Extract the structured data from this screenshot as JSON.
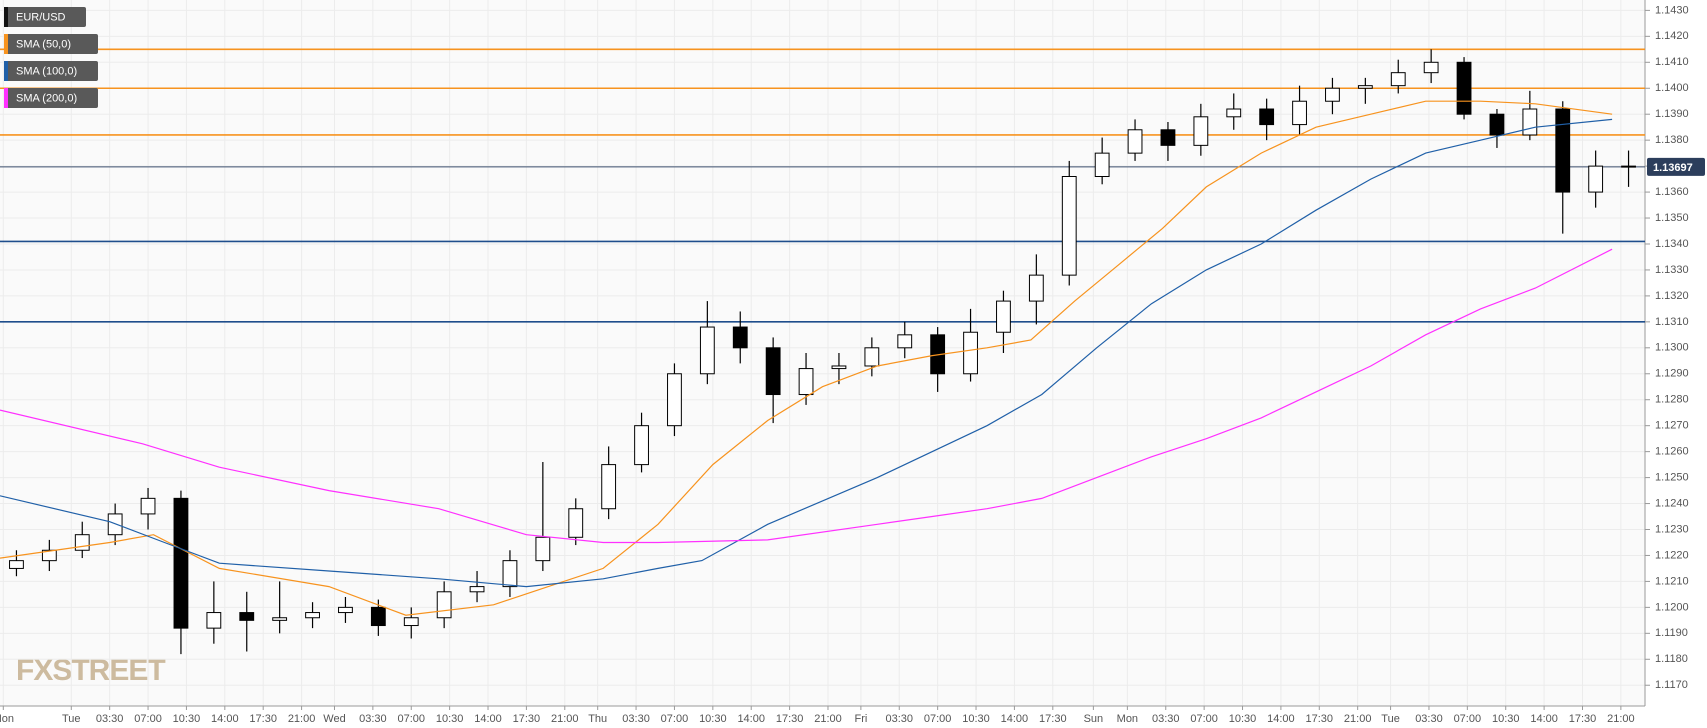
{
  "chart_data": {
    "type": "candlestick",
    "x": [
      1.5,
      4.5,
      7.5,
      10.5,
      13.5,
      16.5,
      19.5,
      22.5,
      25.5,
      28.5,
      31.5,
      34.5,
      37.5,
      40.5,
      43.5,
      46.5,
      49.5,
      52.5,
      55.5,
      58.5,
      61.5,
      64.5,
      67.5,
      70.5,
      73.5,
      76.5,
      79.5,
      82.5,
      85.5,
      88.5,
      91.5,
      94.5,
      97.5,
      100.5,
      103.5,
      106.5,
      109.5,
      112.5,
      115.5,
      118.5,
      121.5,
      124.5,
      127.5,
      130.5,
      133.5,
      136.5,
      139.5,
      142.5,
      145.5,
      148.5
    ],
    "series": [
      {
        "name": "EUR/USD",
        "color": "#000000",
        "open": [
          1.1215,
          1.1218,
          1.1222,
          1.1228,
          1.1236,
          1.1242,
          1.1192,
          1.1198,
          1.1195,
          1.1196,
          1.1198,
          1.12,
          1.1193,
          1.1196,
          1.1206,
          1.1208,
          1.1218,
          1.1227,
          1.1238,
          1.1255,
          1.127,
          1.129,
          1.1308,
          1.13,
          1.1282,
          1.1292,
          1.1293,
          1.13,
          1.1305,
          1.129,
          1.1306,
          1.1318,
          1.1328,
          1.1366,
          1.1375,
          1.1384,
          1.1378,
          1.1389,
          1.1392,
          1.1386,
          1.1395,
          1.14,
          1.1401,
          1.1406,
          1.141,
          1.139,
          1.1382,
          1.1392,
          1.136,
          1.137
        ],
        "high": [
          1.1222,
          1.1226,
          1.1233,
          1.124,
          1.1246,
          1.1245,
          1.121,
          1.1206,
          1.121,
          1.1202,
          1.1204,
          1.1203,
          1.12,
          1.121,
          1.1214,
          1.1222,
          1.1256,
          1.1242,
          1.1262,
          1.1275,
          1.1294,
          1.1318,
          1.1314,
          1.1304,
          1.1298,
          1.1298,
          1.1304,
          1.131,
          1.1308,
          1.1315,
          1.1322,
          1.1336,
          1.1372,
          1.1381,
          1.1388,
          1.1387,
          1.1394,
          1.1398,
          1.1396,
          1.1401,
          1.1404,
          1.1404,
          1.1411,
          1.1415,
          1.1412,
          1.1392,
          1.1399,
          1.1395,
          1.1376,
          1.1376
        ],
        "low": [
          1.1212,
          1.1214,
          1.1219,
          1.1224,
          1.123,
          1.1182,
          1.1186,
          1.1183,
          1.119,
          1.1192,
          1.1194,
          1.1189,
          1.1188,
          1.1192,
          1.1202,
          1.1204,
          1.1214,
          1.1224,
          1.1234,
          1.1252,
          1.1266,
          1.1286,
          1.1294,
          1.1271,
          1.1278,
          1.1286,
          1.1289,
          1.1296,
          1.1283,
          1.1287,
          1.1298,
          1.1309,
          1.1324,
          1.1363,
          1.1372,
          1.1372,
          1.1374,
          1.1384,
          1.138,
          1.1382,
          1.139,
          1.1394,
          1.1398,
          1.1402,
          1.1388,
          1.1377,
          1.138,
          1.1344,
          1.1354,
          1.1362
        ],
        "close": [
          1.1218,
          1.1222,
          1.1228,
          1.1236,
          1.1242,
          1.1192,
          1.1198,
          1.1195,
          1.1196,
          1.1198,
          1.12,
          1.1193,
          1.1196,
          1.1206,
          1.1208,
          1.1218,
          1.1227,
          1.1238,
          1.1255,
          1.127,
          1.129,
          1.1308,
          1.13,
          1.1282,
          1.1292,
          1.1293,
          1.13,
          1.1305,
          1.129,
          1.1306,
          1.1318,
          1.1328,
          1.1366,
          1.1375,
          1.1384,
          1.1378,
          1.1389,
          1.1392,
          1.1386,
          1.1395,
          1.14,
          1.1401,
          1.1406,
          1.141,
          1.139,
          1.1382,
          1.1392,
          1.136,
          1.137,
          1.13697
        ]
      },
      {
        "name": "SMA (50,0)",
        "color": "#f7931e",
        "x": [
          0,
          10,
          14,
          20,
          30,
          37,
          45,
          50,
          55,
          60,
          65,
          70,
          75,
          80,
          85,
          90,
          94,
          98,
          102,
          106,
          110,
          115,
          120,
          125,
          130,
          135,
          140,
          147
        ],
        "values": [
          1.1219,
          1.1225,
          1.1228,
          1.1215,
          1.1208,
          1.1197,
          1.1201,
          1.1208,
          1.1215,
          1.1232,
          1.1255,
          1.1272,
          1.1285,
          1.1293,
          1.1297,
          1.13,
          1.1303,
          1.1318,
          1.1332,
          1.1346,
          1.1362,
          1.1375,
          1.1385,
          1.139,
          1.1395,
          1.1395,
          1.1394,
          1.139
        ]
      },
      {
        "name": "SMA (100,0)",
        "color": "#2060a8",
        "x": [
          0,
          10,
          15,
          20,
          30,
          40,
          48,
          55,
          60,
          64,
          70,
          80,
          90,
          95,
          100,
          105,
          110,
          115,
          120,
          125,
          130,
          135,
          140,
          147
        ],
        "values": [
          1.1243,
          1.1233,
          1.1225,
          1.1217,
          1.1214,
          1.1211,
          1.1208,
          1.1211,
          1.1215,
          1.1218,
          1.1232,
          1.125,
          1.127,
          1.1282,
          1.13,
          1.1317,
          1.133,
          1.134,
          1.1353,
          1.1365,
          1.1375,
          1.138,
          1.1385,
          1.1388
        ]
      },
      {
        "name": "SMA (200,0)",
        "color": "#ff30ff",
        "x": [
          0,
          13,
          20,
          30,
          40,
          48,
          55,
          60,
          70,
          80,
          85,
          90,
          95,
          100,
          105,
          110,
          115,
          120,
          125,
          130,
          135,
          140,
          147
        ],
        "values": [
          1.1276,
          1.1263,
          1.1254,
          1.1245,
          1.1238,
          1.1228,
          1.1225,
          1.1225,
          1.1226,
          1.1232,
          1.1235,
          1.1238,
          1.1242,
          1.125,
          1.1258,
          1.1265,
          1.1273,
          1.1283,
          1.1293,
          1.1305,
          1.1315,
          1.1323,
          1.1338
        ]
      }
    ],
    "levels": [
      {
        "value": 1.1415,
        "color": "#f7931e"
      },
      {
        "value": 1.14,
        "color": "#f7931e"
      },
      {
        "value": 1.1382,
        "color": "#f7931e"
      },
      {
        "value": 1.1341,
        "color": "#1f4e8c"
      },
      {
        "value": 1.131,
        "color": "#1f4e8c"
      }
    ],
    "last_price": 1.13697,
    "watermark": "FXSTREET",
    "xlim": [
      0,
      150
    ],
    "ylim": [
      1.1162,
      1.1434
    ],
    "grid": true,
    "xticks": [
      {
        "value": 0.3,
        "label": "Mon"
      },
      {
        "value": 6.5,
        "label": "Tue"
      },
      {
        "value": 10,
        "label": "03:30"
      },
      {
        "value": 13.5,
        "label": "07:00"
      },
      {
        "value": 17,
        "label": "10:30"
      },
      {
        "value": 20.5,
        "label": "14:00"
      },
      {
        "value": 24,
        "label": "17:30"
      },
      {
        "value": 27.5,
        "label": "21:00"
      },
      {
        "value": 30.5,
        "label": "Wed"
      },
      {
        "value": 34,
        "label": "03:30"
      },
      {
        "value": 37.5,
        "label": "07:00"
      },
      {
        "value": 41,
        "label": "10:30"
      },
      {
        "value": 44.5,
        "label": "14:00"
      },
      {
        "value": 48,
        "label": "17:30"
      },
      {
        "value": 51.5,
        "label": "21:00"
      },
      {
        "value": 54.5,
        "label": "Thu"
      },
      {
        "value": 58,
        "label": "03:30"
      },
      {
        "value": 61.5,
        "label": "07:00"
      },
      {
        "value": 65,
        "label": "10:30"
      },
      {
        "value": 68.5,
        "label": "14:00"
      },
      {
        "value": 72,
        "label": "17:30"
      },
      {
        "value": 75.5,
        "label": "21:00"
      },
      {
        "value": 78.5,
        "label": "Fri"
      },
      {
        "value": 82,
        "label": "03:30"
      },
      {
        "value": 85.5,
        "label": "07:00"
      },
      {
        "value": 89,
        "label": "10:30"
      },
      {
        "value": 92.5,
        "label": "14:00"
      },
      {
        "value": 96,
        "label": "17:30"
      },
      {
        "value": 99.7,
        "label": "Sun"
      },
      {
        "value": 102.8,
        "label": "Mon"
      },
      {
        "value": 106.3,
        "label": "03:30"
      },
      {
        "value": 109.8,
        "label": "07:00"
      },
      {
        "value": 113.3,
        "label": "10:30"
      },
      {
        "value": 116.8,
        "label": "14:00"
      },
      {
        "value": 120.3,
        "label": "17:30"
      },
      {
        "value": 123.8,
        "label": "21:00"
      },
      {
        "value": 126.8,
        "label": "Tue"
      },
      {
        "value": 130.3,
        "label": "03:30"
      },
      {
        "value": 133.8,
        "label": "07:00"
      },
      {
        "value": 137.3,
        "label": "10:30"
      },
      {
        "value": 140.8,
        "label": "14:00"
      },
      {
        "value": 144.3,
        "label": "17:30"
      },
      {
        "value": 147.8,
        "label": "21:00"
      }
    ],
    "yticks": [
      {
        "value": 1.117,
        "label": "1.1170"
      },
      {
        "value": 1.118,
        "label": "1.1180"
      },
      {
        "value": 1.119,
        "label": "1.1190"
      },
      {
        "value": 1.12,
        "label": "1.1200"
      },
      {
        "value": 1.121,
        "label": "1.1210"
      },
      {
        "value": 1.122,
        "label": "1.1220"
      },
      {
        "value": 1.123,
        "label": "1.1230"
      },
      {
        "value": 1.124,
        "label": "1.1240"
      },
      {
        "value": 1.125,
        "label": "1.1250"
      },
      {
        "value": 1.126,
        "label": "1.1260"
      },
      {
        "value": 1.127,
        "label": "1.1270"
      },
      {
        "value": 1.128,
        "label": "1.1280"
      },
      {
        "value": 1.129,
        "label": "1.1290"
      },
      {
        "value": 1.13,
        "label": "1.1300"
      },
      {
        "value": 1.131,
        "label": "1.1310"
      },
      {
        "value": 1.132,
        "label": "1.1320"
      },
      {
        "value": 1.133,
        "label": "1.1330"
      },
      {
        "value": 1.134,
        "label": "1.1340"
      },
      {
        "value": 1.135,
        "label": "1.1350"
      },
      {
        "value": 1.136,
        "label": "1.1360"
      },
      {
        "value": 1.137,
        "label": "1.1370"
      },
      {
        "value": 1.138,
        "label": "1.1380"
      },
      {
        "value": 1.139,
        "label": "1.1390"
      },
      {
        "value": 1.14,
        "label": "1.1400"
      },
      {
        "value": 1.141,
        "label": "1.1410"
      },
      {
        "value": 1.142,
        "label": "1.1420"
      },
      {
        "value": 1.143,
        "label": "1.1430"
      }
    ]
  }
}
